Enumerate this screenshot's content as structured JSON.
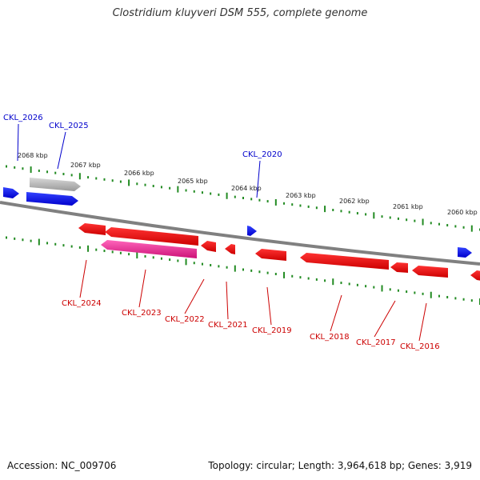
{
  "title": "Clostridium kluyveri DSM 555, complete genome",
  "footer": {
    "accession": "Accession: NC_009706",
    "summary": "Topology: circular; Length: 3,964,618 bp; Genes: 3,919"
  },
  "scale_labels": [
    "2068 kbp",
    "2067 kbp",
    "2066 kbp",
    "2065 kbp",
    "2064 kbp",
    "2063 kbp",
    "2062 kbp",
    "2061 kbp",
    "2060 kbp"
  ],
  "genes_forward": [
    "CKL_2026",
    "CKL_2025",
    "CKL_2020"
  ],
  "genes_reverse": [
    "CKL_2024",
    "CKL_2023",
    "CKL_2022",
    "CKL_2021",
    "CKL_2019",
    "CKL_2018",
    "CKL_2017",
    "CKL_2016"
  ],
  "colors": {
    "forward_gene": "#0000ee",
    "reverse_gene": "#ee0000",
    "pseudo_forward": "#b8b8b8",
    "pseudo_reverse": "#ee3399",
    "backbone": "#808080",
    "ticks": "#228b22",
    "forward_label": "#0000cc",
    "reverse_label": "#cc0000"
  }
}
